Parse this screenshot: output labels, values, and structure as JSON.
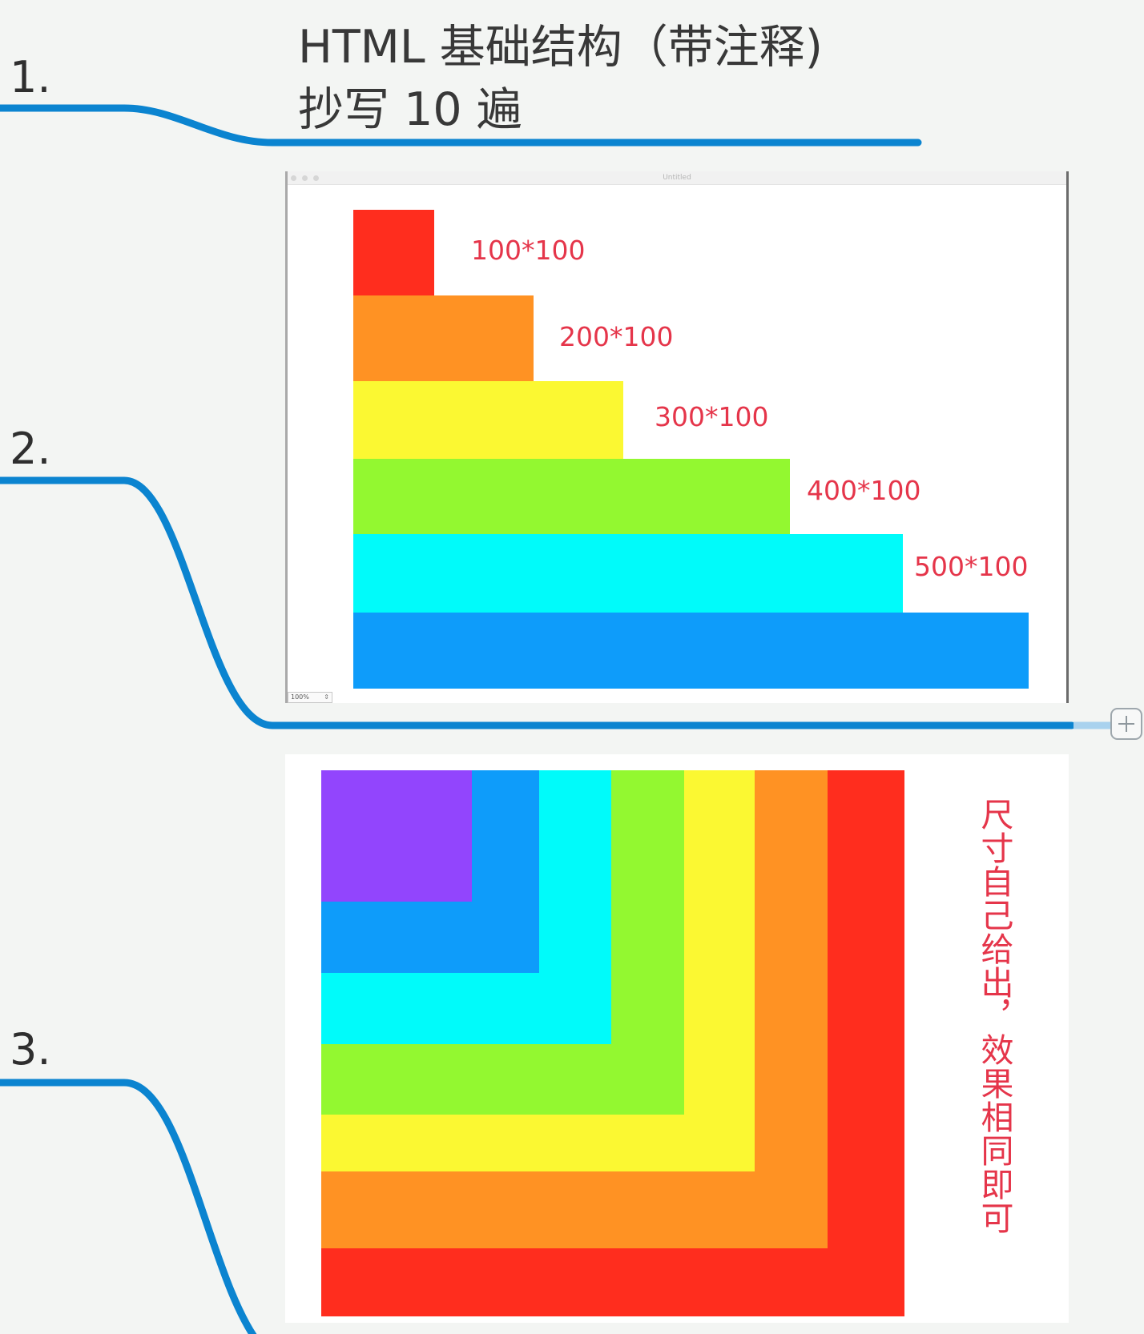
{
  "branches": [
    {
      "number": "1.",
      "topic_lines": [
        "HTML 基础结构（带注释)",
        "抄写 10 遍"
      ]
    },
    {
      "number": "2."
    },
    {
      "number": "3."
    }
  ],
  "image1": {
    "window_title": "Untitled",
    "zoom": "100%",
    "bars": [
      {
        "label": "100*100",
        "color": "#ff2d1e"
      },
      {
        "label": "200*100",
        "color": "#ff9223"
      },
      {
        "label": "300*100",
        "color": "#fbf832"
      },
      {
        "label": "400*100",
        "color": "#93f830"
      },
      {
        "label": "500*100",
        "color": "#00fbfa"
      },
      {
        "label": "",
        "color": "#0e9cfa"
      }
    ]
  },
  "image2": {
    "note": "尺寸自己给出，效果相同即可",
    "squares": [
      {
        "color": "#ff2d1e"
      },
      {
        "color": "#ff9223"
      },
      {
        "color": "#fbf832"
      },
      {
        "color": "#93f830"
      },
      {
        "color": "#00fbfa"
      },
      {
        "color": "#0e9cfa"
      },
      {
        "color": "#9245fd"
      }
    ]
  },
  "colors": {
    "connector": "#0b84d0",
    "label_red": "#e5354a"
  }
}
